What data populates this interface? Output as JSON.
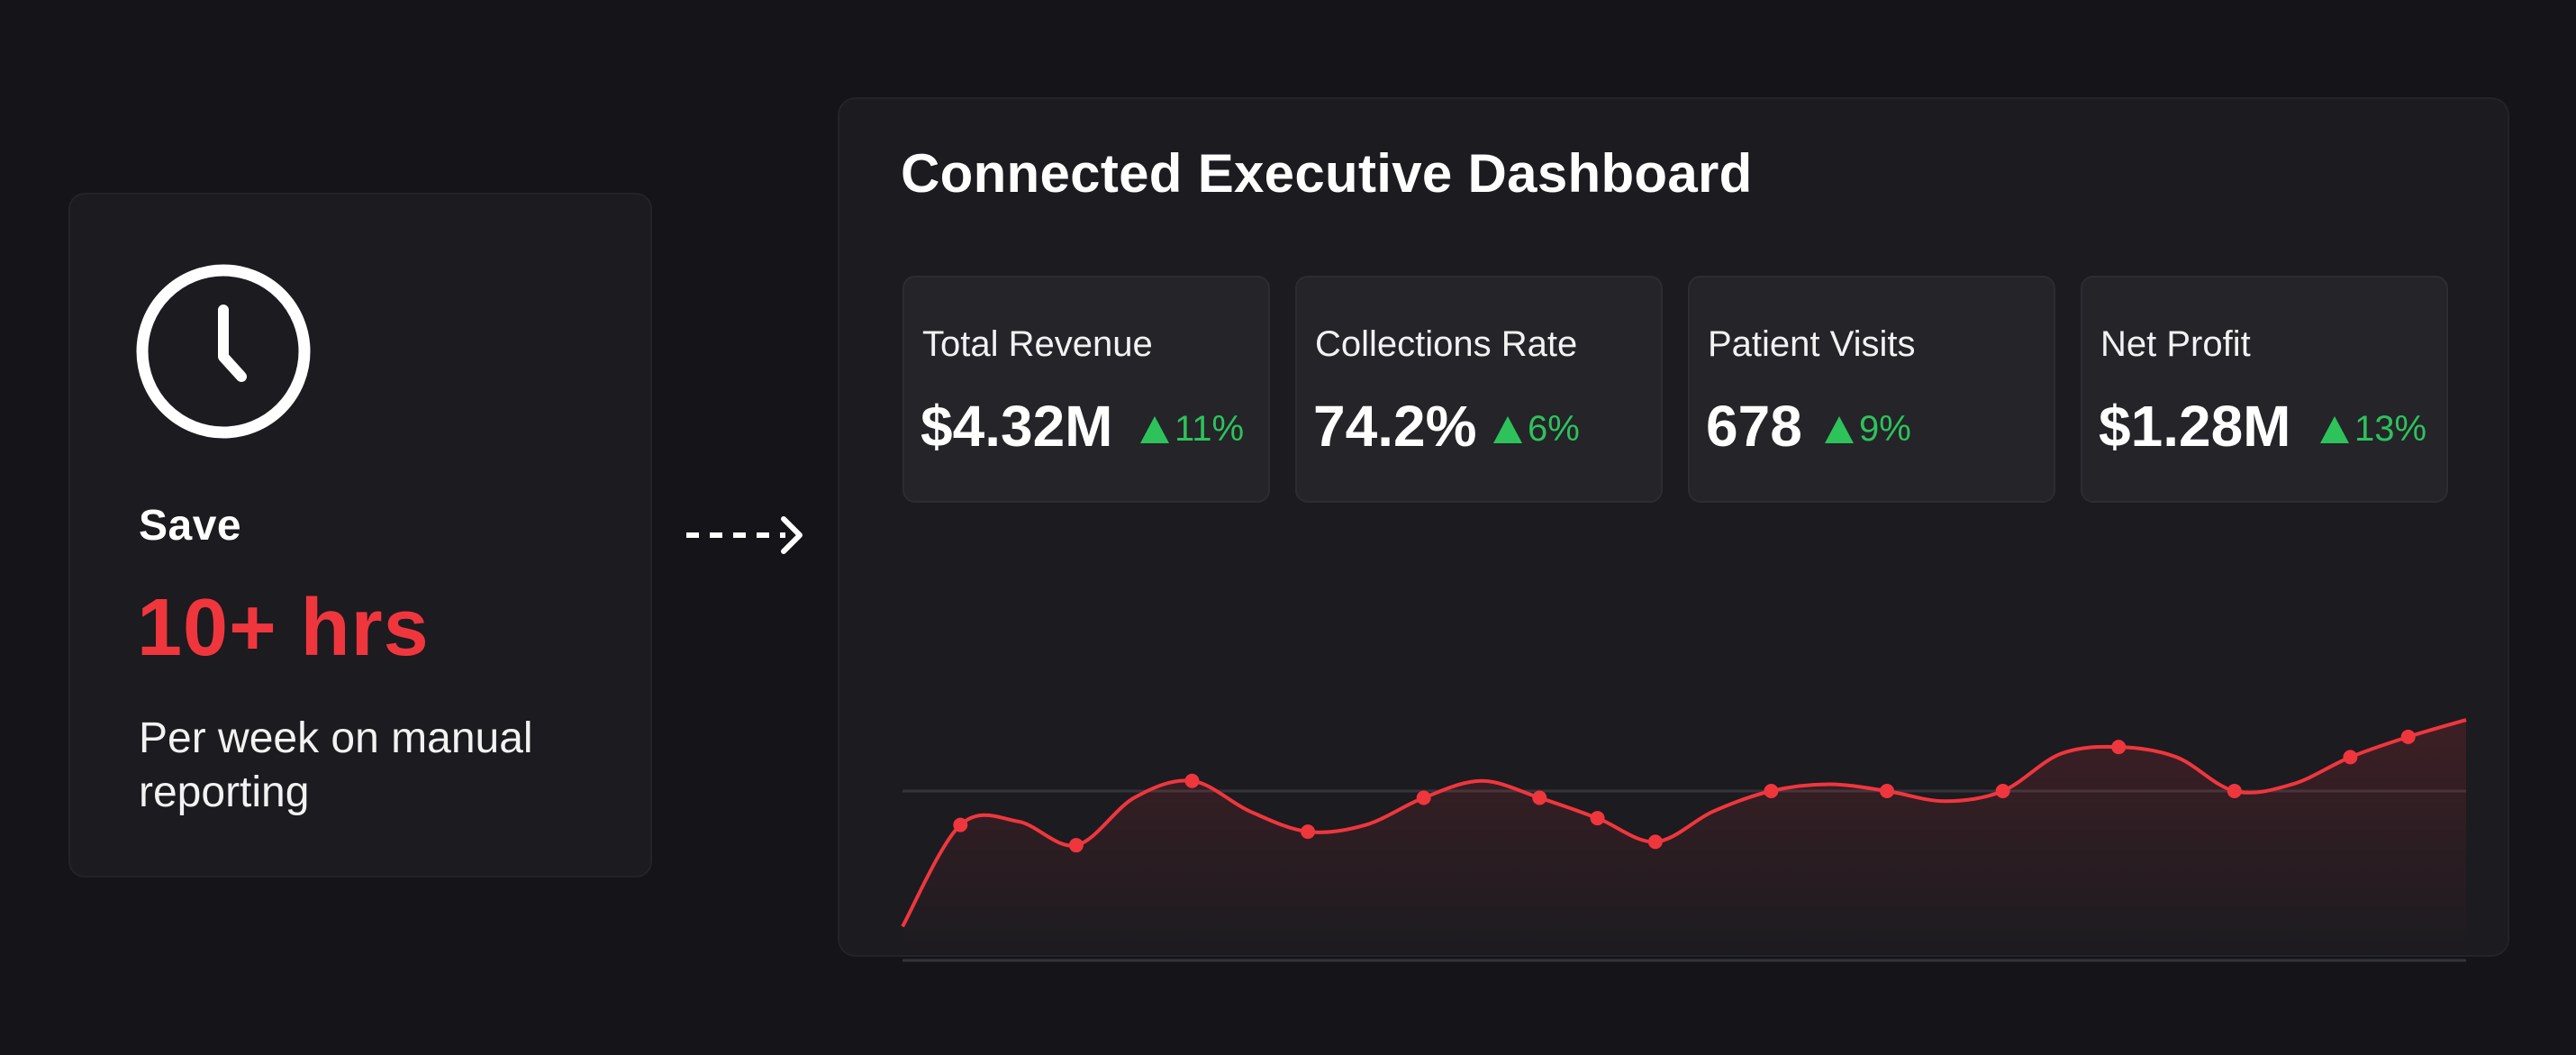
{
  "left_card": {
    "icon": "clock-icon",
    "save_label": "Save",
    "hours": "10+ hrs",
    "description": "Per week on manual reporting"
  },
  "arrow_icon": "dashed-arrow-right-icon",
  "dashboard": {
    "title": "Connected Executive Dashboard",
    "kpis": [
      {
        "label": "Total Revenue",
        "value": "$4.32M",
        "delta": "11%"
      },
      {
        "label": "Collections Rate",
        "value": "74.2%",
        "delta": "6%"
      },
      {
        "label": "Patient Visits",
        "value": "678",
        "delta": "9%"
      },
      {
        "label": "Net Profit",
        "value": "$1.28M",
        "delta": "13%"
      }
    ]
  },
  "colors": {
    "background": "#141419",
    "card": "#1b1b20",
    "kpi_card": "#242429",
    "accent_red": "#f0363d",
    "delta_green": "#2ec25b"
  },
  "chart_data": {
    "type": "area",
    "x": [
      0,
      1,
      2,
      3,
      4,
      5,
      6,
      7,
      8,
      9,
      10,
      11,
      12,
      13,
      14,
      15,
      16,
      17,
      18,
      19,
      20,
      21,
      22,
      23,
      24,
      25,
      26,
      27
    ],
    "values": [
      10,
      40,
      41,
      34,
      48,
      53,
      44,
      38,
      40,
      48,
      53,
      48,
      42,
      35,
      44,
      50,
      52,
      50,
      47,
      50,
      61,
      63,
      60,
      50,
      52,
      60,
      66,
      71
    ],
    "markers": [
      1,
      3,
      5,
      7,
      9,
      11,
      12,
      13,
      15,
      17,
      19,
      21,
      23,
      25,
      26
    ],
    "title": "",
    "xlabel": "",
    "ylabel": "",
    "ylim": [
      0,
      100
    ],
    "grid": "horizontal"
  }
}
